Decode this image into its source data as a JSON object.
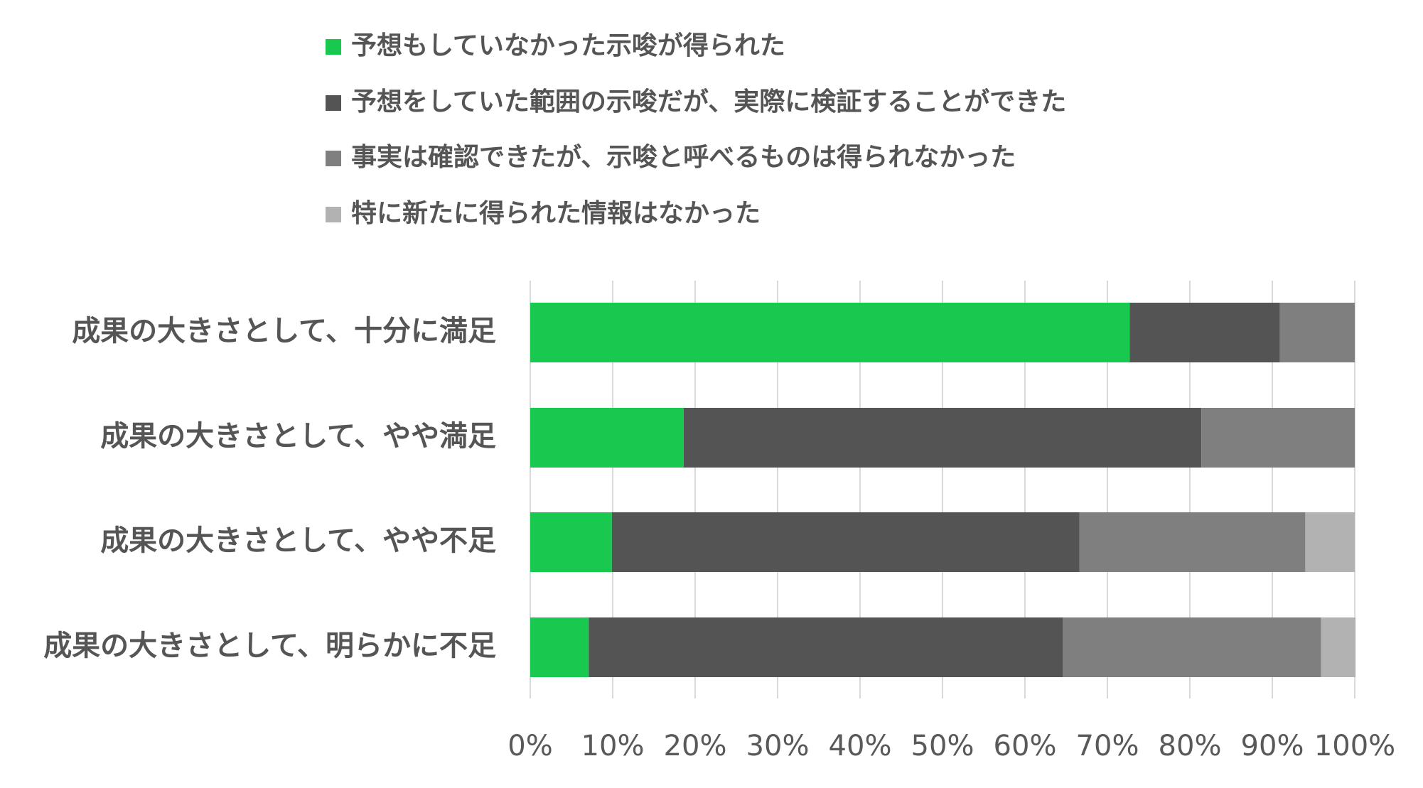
{
  "chart_data": {
    "type": "bar",
    "orientation": "horizontal",
    "stacked": true,
    "percent_stacked": true,
    "categories": [
      "成果の大きさとして、十分に満足",
      "成果の大きさとして、やや満足",
      "成果の大きさとして、やや不足",
      "成果の大きさとして、明らかに不足"
    ],
    "series": [
      {
        "name": "予想もしていなかった示唆が得られた",
        "color": "#19c84e",
        "values": [
          72.7,
          18.6,
          9.9,
          7.1
        ]
      },
      {
        "name": "予想をしていた範囲の示唆だが、実際に検証することができた",
        "color": "#545454",
        "values": [
          18.2,
          62.8,
          56.7,
          57.5
        ]
      },
      {
        "name": "事実は確認できたが、示唆と呼べるものは得られなかった",
        "color": "#7f7f7f",
        "values": [
          9.1,
          18.6,
          27.4,
          31.3
        ]
      },
      {
        "name": "特に新たに得られた情報はなかった",
        "color": "#b2b2b2",
        "values": [
          0,
          0,
          6.0,
          4.2
        ]
      }
    ],
    "x_ticks": [
      "0%",
      "10%",
      "20%",
      "30%",
      "40%",
      "50%",
      "60%",
      "70%",
      "80%",
      "90%",
      "100%"
    ],
    "xlim": [
      0,
      100
    ],
    "grid": true,
    "legend_position": "top"
  }
}
